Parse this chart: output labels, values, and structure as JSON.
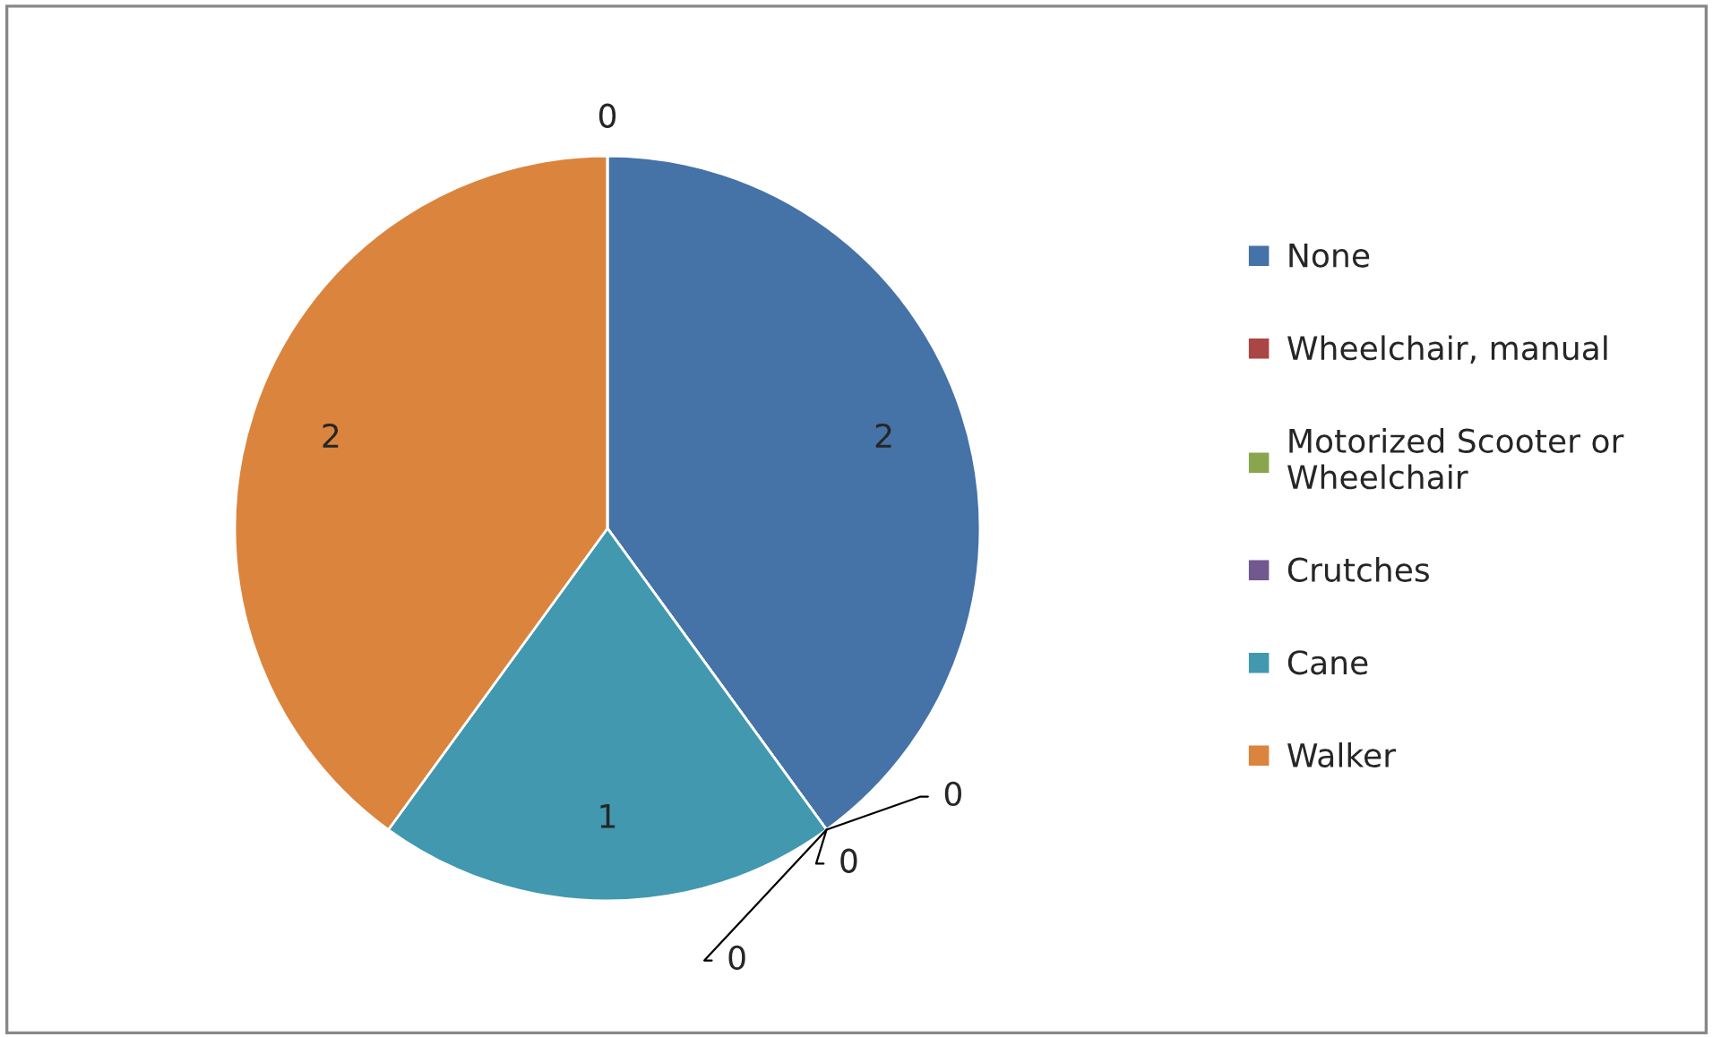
{
  "chart_data": {
    "type": "pie",
    "categories": [
      "None",
      "Wheelchair, manual",
      "Motorized Scooter or Wheelchair",
      "Crutches",
      "Cane",
      "Walker",
      null
    ],
    "values": [
      2,
      0,
      0,
      0,
      1,
      2,
      0
    ],
    "colors": [
      "#4572a7",
      "#aa4643",
      "#89a54e",
      "#71588f",
      "#4198af",
      "#db843d",
      "#93a9cf"
    ],
    "value_labels": [
      "2",
      "0",
      "0",
      "0",
      "1",
      "2",
      "0"
    ],
    "legend": "right"
  }
}
